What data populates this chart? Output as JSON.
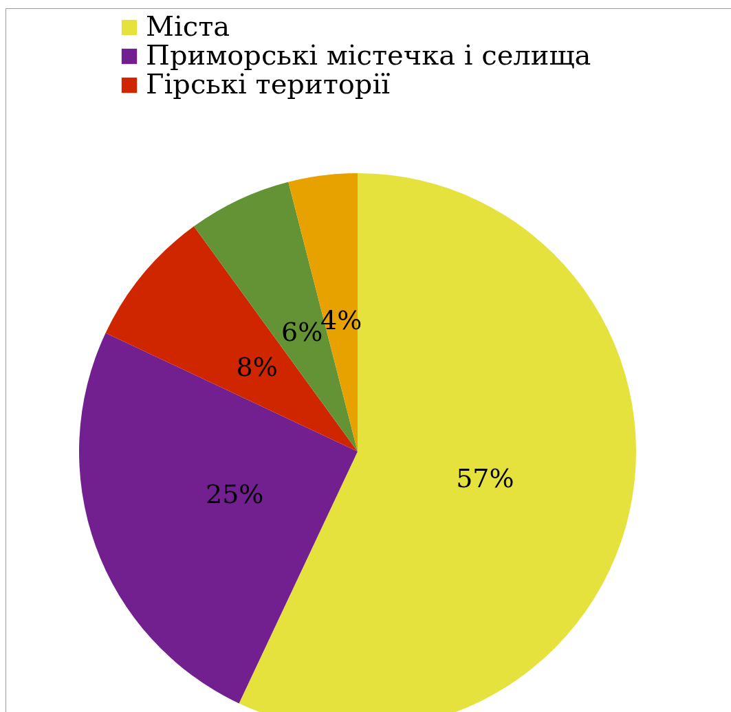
{
  "chart_data": {
    "type": "pie",
    "categories": [
      "Міста",
      "Приморські містечка і селища",
      "Гірські території",
      null,
      null
    ],
    "values": [
      57,
      25,
      8,
      6,
      4
    ],
    "colors": [
      "#e5e23e",
      "#722090",
      "#cf2600",
      "#639335",
      "#e8a200"
    ],
    "value_labels": [
      "57%",
      "25%",
      "8%",
      "6%",
      "4%"
    ],
    "legend": "top left"
  }
}
